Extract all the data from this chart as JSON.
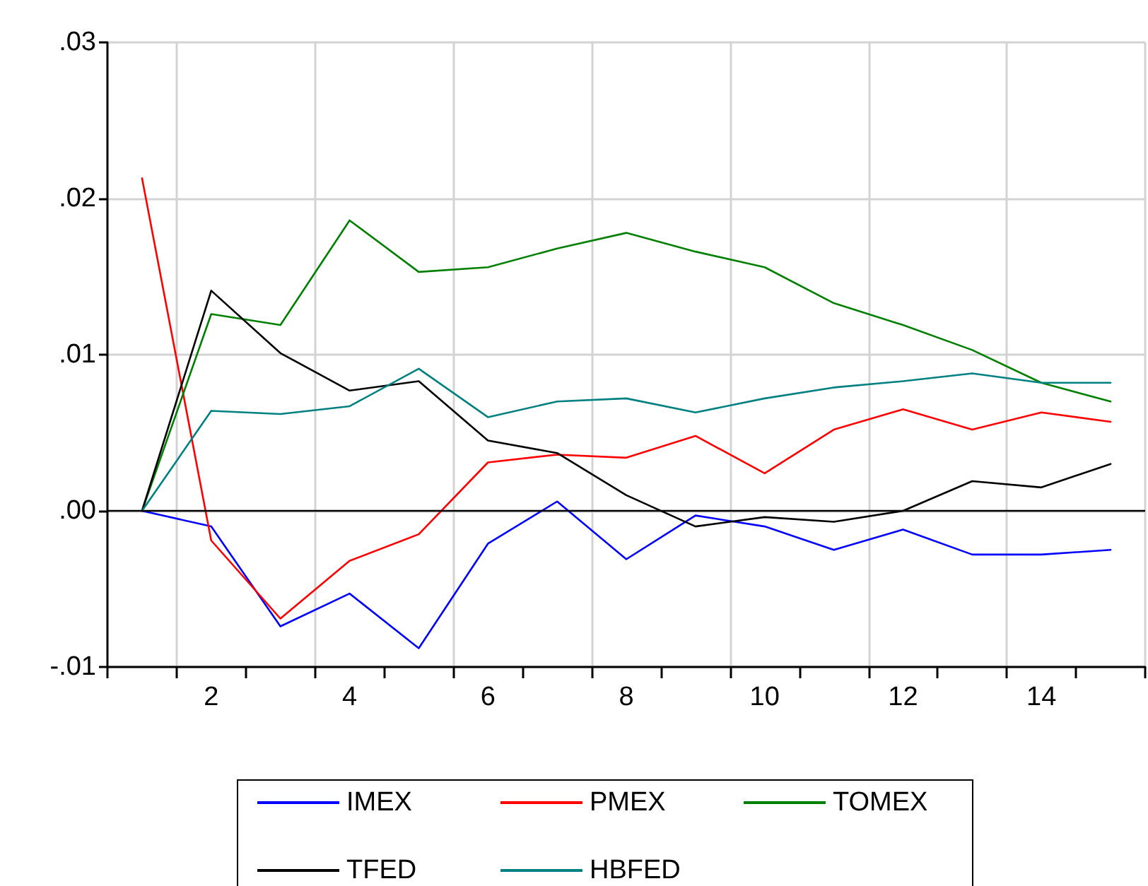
{
  "chart_data": {
    "type": "line",
    "categories": [
      null,
      "2",
      null,
      "4",
      null,
      "6",
      null,
      "8",
      null,
      "10",
      null,
      "12",
      null,
      "14",
      null
    ],
    "series": [
      {
        "name": "IMEX",
        "color": "#0000ff",
        "values": [
          0,
          -0.001,
          -0.0074,
          -0.0053,
          -0.0088,
          -0.0021,
          0.0006,
          -0.0031,
          -0.0003,
          -0.001,
          -0.0025,
          -0.0012,
          -0.0028,
          -0.0028,
          -0.0025
        ]
      },
      {
        "name": "PMEX",
        "color": "#ff0000",
        "values": [
          0.0213,
          -0.0019,
          -0.0069,
          -0.0032,
          -0.0015,
          0.0031,
          0.0036,
          0.0034,
          0.0048,
          0.0024,
          0.0052,
          0.0065,
          0.0052,
          0.0063,
          0.0057
        ]
      },
      {
        "name": "TOMEX",
        "color": "#008000",
        "values": [
          0,
          0.0126,
          0.0119,
          0.0186,
          0.0153,
          0.0156,
          0.0168,
          0.0178,
          0.0166,
          0.0156,
          0.0133,
          0.0119,
          0.0103,
          0.0082,
          0.007
        ]
      },
      {
        "name": "TFED",
        "color": "#000000",
        "values": [
          0,
          0.0141,
          0.0101,
          0.0077,
          0.0083,
          0.0045,
          0.0037,
          0.001,
          -0.001,
          -0.0004,
          -0.0007,
          0,
          0.0019,
          0.0015,
          0.003
        ]
      },
      {
        "name": "HBFED",
        "color": "#008080",
        "values": [
          0,
          0.0064,
          0.0062,
          0.0067,
          0.0091,
          0.006,
          0.007,
          0.0072,
          0.0063,
          0.0072,
          0.0079,
          0.0083,
          0.0088,
          0.0082,
          0.0082
        ]
      }
    ],
    "ylim": [
      -0.01,
      0.03
    ],
    "yticks": [
      {
        "value": -0.01,
        "label": "-.01"
      },
      {
        "value": 0,
        "label": ".00"
      },
      {
        "value": 0.01,
        "label": ".01"
      },
      {
        "value": 0.02,
        "label": ".02"
      },
      {
        "value": 0.03,
        "label": ".03"
      }
    ],
    "ref_lines": [
      {
        "axis": "y",
        "value": 0,
        "color": "#000000",
        "line_style": "solid"
      }
    ],
    "grid": true,
    "legend": "bottom",
    "line_style": "solid",
    "marker": "none"
  }
}
